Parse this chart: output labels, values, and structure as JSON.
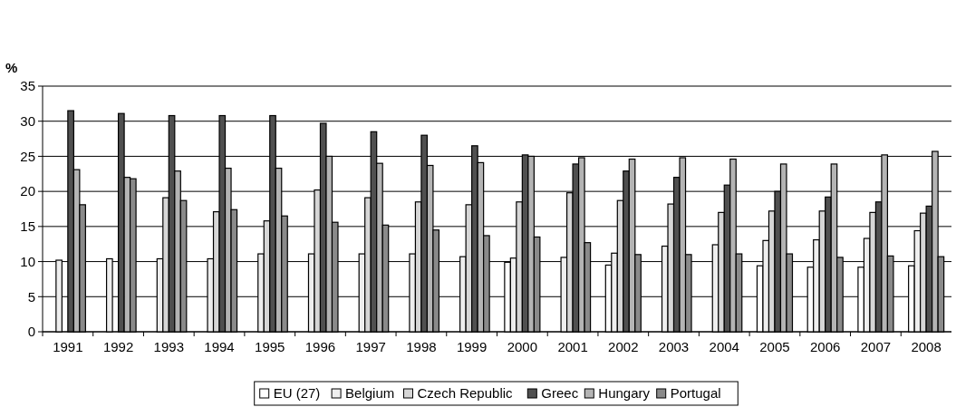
{
  "chart_data": {
    "type": "bar",
    "ylabel": "%",
    "categories": [
      "1991",
      "1992",
      "1993",
      "1994",
      "1995",
      "1996",
      "1997",
      "1998",
      "1999",
      "2000",
      "2001",
      "2002",
      "2003",
      "2004",
      "2005",
      "2006",
      "2007",
      "2008"
    ],
    "series": [
      {
        "name": "EU (27)",
        "color": "#ffffff",
        "values": [
          null,
          null,
          null,
          null,
          null,
          null,
          null,
          null,
          null,
          9.9,
          null,
          9.5,
          null,
          null,
          9.4,
          9.2,
          9.2,
          9.4
        ]
      },
      {
        "name": "Belgium",
        "color": "#eeeeee",
        "values": [
          10.2,
          10.4,
          10.4,
          10.4,
          11.1,
          11.1,
          11.1,
          11.1,
          10.7,
          10.5,
          10.6,
          11.2,
          12.2,
          12.4,
          13,
          13.1,
          13.3,
          14.4
        ]
      },
      {
        "name": "Czech Republic",
        "color": "#d6d6d6",
        "values": [
          null,
          null,
          19.1,
          17.1,
          15.8,
          20.2,
          19.1,
          18.5,
          18.1,
          18.5,
          19.8,
          18.7,
          18.2,
          17,
          17.2,
          17.2,
          17,
          16.9
        ]
      },
      {
        "name": "Greec",
        "color": "#505050",
        "values": [
          31.5,
          31.1,
          30.8,
          30.8,
          30.8,
          29.7,
          28.5,
          28,
          26.5,
          25.2,
          23.9,
          22.9,
          22,
          20.9,
          20,
          19.2,
          18.5,
          17.9
        ]
      },
      {
        "name": "Hungary",
        "color": "#b4b4b4",
        "values": [
          23.1,
          22,
          22.9,
          23.3,
          23.3,
          25,
          24,
          23.7,
          24.1,
          25,
          24.8,
          24.6,
          24.8,
          24.6,
          23.9,
          23.9,
          25.2,
          25.7
        ]
      },
      {
        "name": "Portugal",
        "color": "#8a8a8a",
        "values": [
          18.1,
          21.8,
          18.7,
          17.4,
          16.5,
          15.6,
          15.2,
          14.5,
          13.7,
          13.5,
          12.7,
          11,
          11,
          11.1,
          11.1,
          10.6,
          10.8,
          10.7
        ]
      }
    ],
    "ylim": [
      0,
      35
    ],
    "yticks": [
      0,
      5,
      10,
      15,
      20,
      25,
      30,
      35
    ],
    "grid": "y",
    "legend": "bottom"
  }
}
